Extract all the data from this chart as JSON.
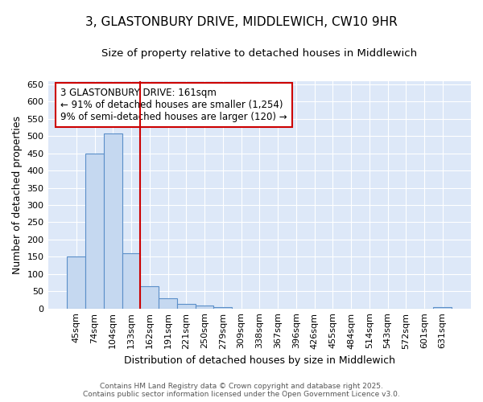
{
  "title": "3, GLASTONBURY DRIVE, MIDDLEWICH, CW10 9HR",
  "subtitle": "Size of property relative to detached houses in Middlewich",
  "xlabel": "Distribution of detached houses by size in Middlewich",
  "ylabel": "Number of detached properties",
  "bar_labels": [
    "45sqm",
    "74sqm",
    "104sqm",
    "133sqm",
    "162sqm",
    "191sqm",
    "221sqm",
    "250sqm",
    "279sqm",
    "309sqm",
    "338sqm",
    "367sqm",
    "396sqm",
    "426sqm",
    "455sqm",
    "484sqm",
    "514sqm",
    "543sqm",
    "572sqm",
    "601sqm",
    "631sqm"
  ],
  "bar_values": [
    150,
    450,
    507,
    160,
    65,
    30,
    13,
    8,
    5,
    0,
    0,
    0,
    0,
    0,
    0,
    0,
    0,
    0,
    0,
    0,
    5
  ],
  "bar_color": "#c5d8f0",
  "bar_edge_color": "#5b8fc9",
  "vline_x_index": 4,
  "vline_color": "#cc0000",
  "annotation_text": "3 GLASTONBURY DRIVE: 161sqm\n← 91% of detached houses are smaller (1,254)\n9% of semi-detached houses are larger (120) →",
  "annotation_box_color": "white",
  "annotation_box_edge_color": "#cc0000",
  "ylim": [
    0,
    660
  ],
  "yticks": [
    0,
    50,
    100,
    150,
    200,
    250,
    300,
    350,
    400,
    450,
    500,
    550,
    600,
    650
  ],
  "background_color": "#dde8f8",
  "grid_color": "#c0cce0",
  "footer_line1": "Contains HM Land Registry data © Crown copyright and database right 2025.",
  "footer_line2": "Contains public sector information licensed under the Open Government Licence v3.0.",
  "title_fontsize": 11,
  "subtitle_fontsize": 9.5,
  "axis_label_fontsize": 9,
  "tick_fontsize": 8,
  "annotation_fontsize": 8.5
}
